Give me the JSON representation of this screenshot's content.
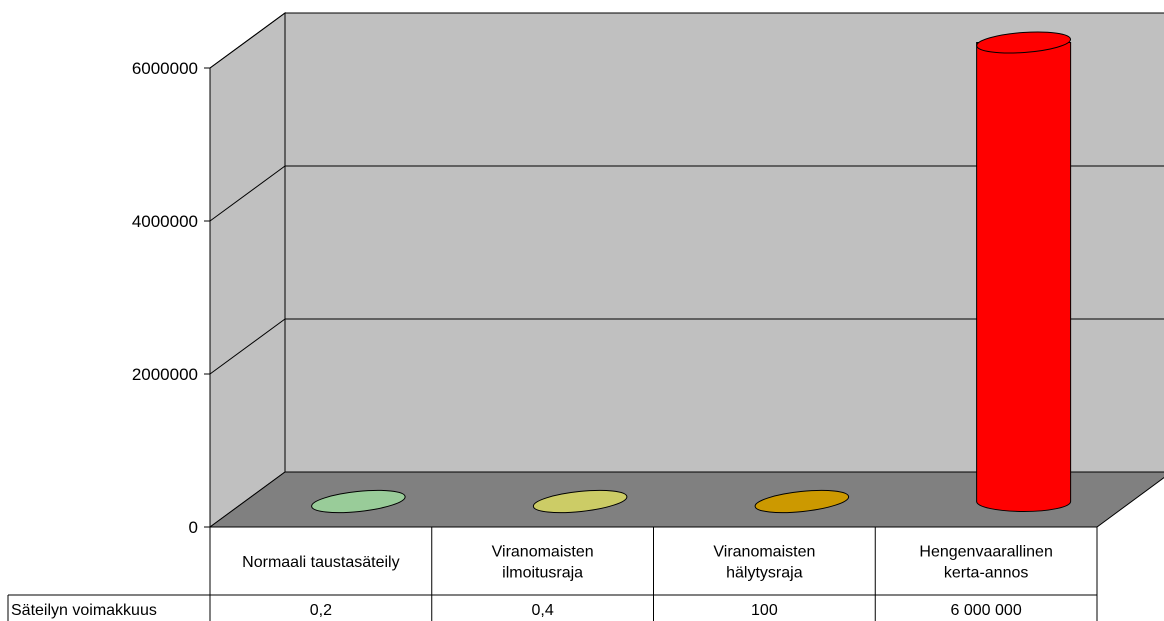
{
  "chart_data": {
    "type": "bar",
    "style": "3d-cylinder",
    "categories": [
      [
        "Normaali taustasäteily"
      ],
      [
        "Viranomaisten",
        "ilmoitusraja"
      ],
      [
        "Viranomaisten",
        "hälytysraja"
      ],
      [
        "Hengenvaarallinen",
        "kerta-annos"
      ]
    ],
    "series": [
      {
        "name": "Säteilyn voimakkuus",
        "values": [
          0.2,
          0.4,
          100,
          6000000
        ],
        "labels": [
          "0,2",
          "0,4",
          "100",
          "6 000 000"
        ],
        "colors": [
          "#99cc99",
          "#cccc66",
          "#cc9900",
          "#ff0000"
        ]
      }
    ],
    "yticks": [
      0,
      2000000,
      4000000,
      6000000
    ],
    "ytick_labels": [
      "0",
      "2000000",
      "4000000",
      "6000000"
    ],
    "ylim": [
      0,
      6000000
    ],
    "grid": true,
    "legend": "none",
    "data_table": true,
    "colors": {
      "back_wall": "#c0c0c0",
      "floor": "#808080",
      "grid": "#000000"
    }
  }
}
